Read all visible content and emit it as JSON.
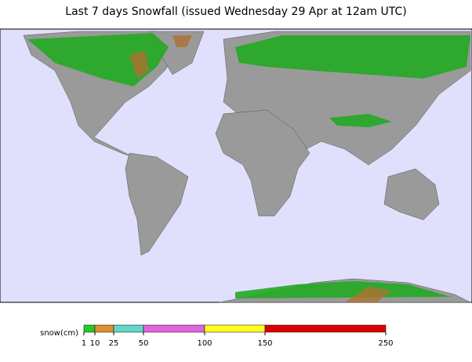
{
  "title": "Last 7 days Snowfall (issued Wednesday 29 Apr at 12am UTC)",
  "legend": {
    "label": "snow(cm)",
    "ticks": [
      1,
      10,
      25,
      50,
      100,
      150,
      250
    ],
    "colors": [
      "#22cc22",
      "#e09030",
      "#60d8c8",
      "#dd66dd",
      "#ffff22",
      "#dd0000"
    ]
  }
}
